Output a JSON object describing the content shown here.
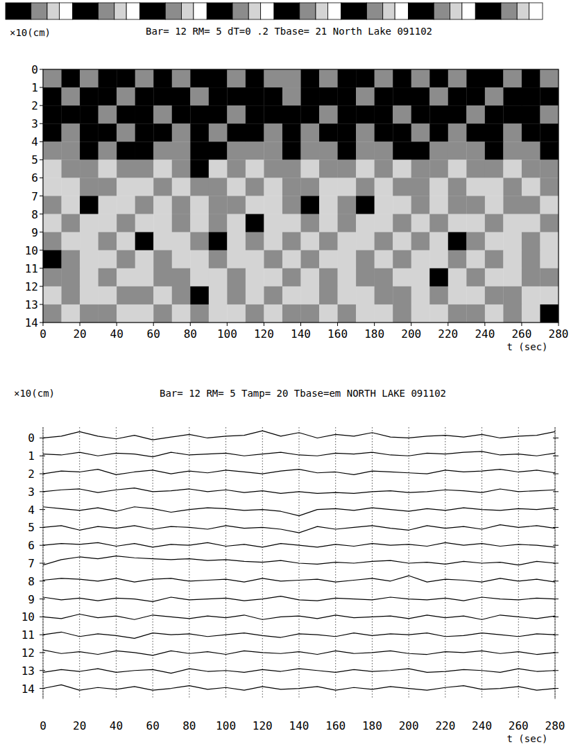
{
  "chart_data": [
    {
      "type": "heatmap",
      "title": "Bar= 12  RM= 5  dT=0 .2  Tbase= 21  North Lake 091102",
      "y_label": "×10(cm)",
      "x_label": "t (sec)",
      "xlim": [
        0,
        280
      ],
      "xticks": [
        0,
        20,
        40,
        60,
        80,
        100,
        120,
        140,
        160,
        180,
        200,
        220,
        240,
        260,
        280
      ],
      "ylim": [
        0,
        14
      ],
      "yticks": [
        0,
        1,
        2,
        3,
        4,
        5,
        6,
        7,
        8,
        9,
        10,
        11,
        12,
        13,
        14
      ],
      "levels": [
        0,
        1,
        2,
        3
      ],
      "colors": [
        "#ffffff",
        "#d4d4d4",
        "#8c8c8c",
        "#000000"
      ],
      "cells": [
        [
          2,
          3,
          2,
          3,
          3,
          2,
          3,
          2,
          3,
          3,
          2,
          3,
          2,
          2,
          3,
          2,
          3,
          3,
          2,
          3,
          2,
          3,
          2,
          3,
          3,
          2,
          3,
          2
        ],
        [
          3,
          2,
          3,
          3,
          2,
          3,
          3,
          3,
          2,
          3,
          3,
          3,
          3,
          2,
          3,
          3,
          3,
          2,
          3,
          3,
          3,
          2,
          3,
          3,
          2,
          3,
          3,
          3
        ],
        [
          3,
          3,
          3,
          2,
          3,
          3,
          2,
          3,
          3,
          3,
          2,
          3,
          3,
          3,
          3,
          2,
          3,
          3,
          3,
          2,
          3,
          3,
          3,
          2,
          3,
          3,
          3,
          2
        ],
        [
          3,
          2,
          3,
          3,
          2,
          3,
          3,
          2,
          3,
          2,
          3,
          3,
          2,
          3,
          2,
          3,
          3,
          2,
          3,
          3,
          2,
          3,
          2,
          3,
          3,
          2,
          3,
          3
        ],
        [
          2,
          2,
          3,
          2,
          3,
          3,
          2,
          2,
          3,
          3,
          2,
          2,
          2,
          3,
          2,
          2,
          3,
          2,
          2,
          3,
          3,
          2,
          2,
          2,
          3,
          2,
          2,
          3
        ],
        [
          1,
          2,
          2,
          1,
          2,
          2,
          1,
          2,
          3,
          1,
          2,
          1,
          2,
          2,
          1,
          2,
          2,
          1,
          2,
          1,
          2,
          2,
          1,
          2,
          2,
          1,
          2,
          2
        ],
        [
          1,
          1,
          2,
          2,
          1,
          1,
          2,
          1,
          2,
          2,
          1,
          2,
          1,
          2,
          2,
          1,
          1,
          2,
          1,
          2,
          2,
          1,
          2,
          1,
          1,
          2,
          1,
          2
        ],
        [
          2,
          1,
          3,
          1,
          1,
          2,
          1,
          2,
          1,
          2,
          2,
          1,
          1,
          2,
          3,
          1,
          2,
          3,
          1,
          1,
          2,
          1,
          2,
          2,
          1,
          2,
          2,
          1
        ],
        [
          1,
          2,
          1,
          1,
          2,
          1,
          1,
          2,
          1,
          2,
          1,
          3,
          1,
          1,
          2,
          1,
          2,
          1,
          1,
          2,
          1,
          2,
          1,
          1,
          2,
          1,
          1,
          2
        ],
        [
          2,
          1,
          1,
          2,
          1,
          3,
          1,
          1,
          2,
          3,
          1,
          2,
          1,
          2,
          1,
          2,
          1,
          1,
          2,
          1,
          2,
          1,
          3,
          2,
          1,
          1,
          2,
          1
        ],
        [
          3,
          2,
          1,
          1,
          2,
          1,
          2,
          1,
          1,
          2,
          1,
          1,
          2,
          1,
          2,
          1,
          1,
          2,
          1,
          2,
          1,
          1,
          2,
          1,
          2,
          1,
          2,
          1
        ],
        [
          2,
          2,
          1,
          2,
          1,
          1,
          2,
          2,
          1,
          1,
          2,
          1,
          1,
          2,
          1,
          2,
          1,
          2,
          2,
          1,
          1,
          3,
          1,
          2,
          1,
          1,
          2,
          2
        ],
        [
          1,
          2,
          1,
          1,
          2,
          2,
          1,
          2,
          3,
          1,
          2,
          1,
          2,
          1,
          1,
          2,
          1,
          1,
          2,
          2,
          1,
          2,
          1,
          1,
          2,
          2,
          1,
          1
        ],
        [
          2,
          1,
          2,
          2,
          1,
          1,
          2,
          1,
          2,
          1,
          1,
          2,
          1,
          2,
          2,
          1,
          2,
          1,
          1,
          2,
          1,
          1,
          2,
          2,
          1,
          2,
          1,
          3
        ]
      ]
    },
    {
      "type": "line",
      "title": "Bar= 12  RM= 5 Tamp= 20 Tbase=em NORTH LAKE 091102",
      "y_label": "×10(cm)",
      "x_label": "t (sec)",
      "xlim": [
        0,
        280
      ],
      "xticks": [
        0,
        20,
        40,
        60,
        80,
        100,
        120,
        140,
        160,
        180,
        200,
        220,
        240,
        260,
        280
      ],
      "ylim": [
        -0.6,
        14.6
      ],
      "yticks": [
        0,
        1,
        2,
        3,
        4,
        5,
        6,
        7,
        8,
        9,
        10,
        11,
        12,
        13,
        14
      ],
      "grid": true,
      "color": "#000000",
      "x": [
        0,
        10,
        20,
        30,
        40,
        50,
        60,
        70,
        80,
        90,
        100,
        110,
        120,
        130,
        140,
        150,
        160,
        170,
        180,
        190,
        200,
        210,
        220,
        230,
        240,
        250,
        260,
        270,
        280
      ],
      "series": [
        {
          "values": [
            0.0,
            -0.1,
            -0.35,
            -0.1,
            0.05,
            -0.15,
            0.1,
            -0.05,
            -0.2,
            0.0,
            -0.1,
            -0.15,
            -0.4,
            -0.1,
            -0.3,
            0.0,
            -0.2,
            -0.1,
            -0.3,
            -0.05,
            0.0,
            -0.1,
            -0.15,
            -0.05,
            -0.2,
            0.0,
            -0.1,
            -0.15,
            -0.35
          ]
        },
        {
          "values": [
            0.9,
            0.95,
            0.8,
            1.0,
            0.85,
            0.9,
            1.05,
            0.8,
            0.95,
            0.9,
            0.85,
            1.0,
            0.9,
            0.8,
            0.95,
            1.0,
            0.85,
            0.9,
            0.8,
            0.95,
            1.0,
            0.85,
            0.9,
            0.8,
            0.75,
            0.95,
            0.9,
            1.0,
            0.85
          ]
        },
        {
          "values": [
            2.0,
            1.85,
            1.9,
            1.75,
            2.05,
            1.9,
            1.8,
            2.0,
            1.85,
            1.95,
            1.8,
            1.9,
            2.0,
            1.85,
            1.75,
            1.95,
            1.9,
            2.05,
            1.85,
            1.9,
            1.95,
            2.0,
            1.8,
            1.9,
            1.85,
            1.75,
            1.9,
            1.8,
            1.95
          ]
        },
        {
          "values": [
            3.0,
            2.9,
            2.85,
            3.05,
            2.9,
            2.8,
            3.0,
            2.95,
            2.85,
            3.0,
            2.9,
            3.05,
            2.95,
            3.1,
            3.0,
            3.1,
            3.05,
            3.1,
            3.0,
            2.95,
            3.05,
            3.0,
            2.9,
            2.95,
            3.05,
            2.85,
            3.0,
            2.95,
            2.9
          ]
        },
        {
          "values": [
            3.85,
            3.95,
            4.05,
            3.9,
            4.1,
            3.85,
            3.95,
            4.15,
            4.0,
            3.9,
            3.95,
            4.05,
            4.0,
            4.1,
            4.35,
            4.0,
            3.95,
            4.05,
            3.9,
            4.0,
            4.1,
            3.95,
            4.05,
            3.9,
            4.0,
            4.05,
            3.95,
            4.0,
            3.9
          ]
        },
        {
          "values": [
            5.0,
            4.9,
            5.15,
            4.95,
            5.05,
            4.9,
            5.1,
            4.95,
            5.0,
            5.1,
            4.9,
            5.05,
            5.0,
            5.1,
            5.3,
            4.95,
            5.1,
            5.0,
            4.9,
            5.05,
            5.15,
            4.9,
            5.05,
            4.95,
            5.1,
            4.85,
            5.0,
            4.9,
            5.05
          ]
        },
        {
          "values": [
            6.0,
            5.9,
            5.95,
            5.85,
            6.05,
            5.9,
            6.1,
            5.95,
            6.0,
            5.85,
            6.05,
            5.95,
            6.1,
            5.9,
            6.0,
            6.1,
            5.95,
            6.05,
            5.9,
            6.0,
            5.95,
            6.05,
            5.85,
            6.0,
            5.9,
            6.05,
            5.95,
            6.0,
            6.1
          ]
        },
        {
          "values": [
            7.1,
            6.8,
            6.65,
            6.75,
            6.6,
            6.7,
            6.75,
            6.8,
            6.75,
            6.85,
            6.8,
            6.9,
            6.95,
            6.85,
            7.0,
            7.05,
            6.95,
            7.0,
            6.9,
            6.85,
            7.0,
            6.95,
            7.05,
            6.9,
            7.0,
            6.95,
            7.1,
            6.9,
            7.0
          ]
        },
        {
          "values": [
            7.95,
            7.85,
            7.9,
            8.0,
            7.85,
            8.05,
            7.9,
            7.85,
            8.0,
            7.95,
            7.9,
            8.05,
            7.85,
            8.0,
            7.95,
            7.9,
            8.05,
            7.95,
            7.85,
            8.0,
            7.7,
            8.05,
            7.9,
            7.95,
            8.05,
            7.85,
            8.0,
            7.9,
            8.05
          ]
        },
        {
          "values": [
            8.9,
            9.05,
            8.95,
            9.1,
            8.95,
            9.0,
            9.15,
            8.9,
            9.05,
            9.0,
            8.95,
            9.1,
            9.0,
            8.85,
            9.05,
            9.1,
            8.95,
            9.0,
            9.05,
            8.9,
            9.0,
            9.05,
            8.95,
            9.1,
            8.9,
            9.0,
            9.05,
            8.95,
            9.0
          ]
        },
        {
          "values": [
            10.0,
            10.1,
            9.85,
            10.05,
            9.95,
            10.15,
            9.9,
            10.0,
            10.1,
            9.95,
            10.05,
            9.9,
            10.15,
            10.0,
            9.95,
            10.1,
            9.9,
            10.05,
            10.0,
            9.95,
            10.1,
            9.9,
            10.05,
            9.95,
            10.15,
            9.9,
            10.0,
            10.1,
            9.95
          ]
        },
        {
          "values": [
            11.0,
            10.85,
            11.1,
            10.95,
            11.05,
            11.2,
            10.9,
            11.0,
            10.95,
            11.1,
            11.0,
            10.9,
            11.05,
            11.15,
            10.95,
            11.0,
            11.1,
            10.9,
            11.05,
            10.95,
            11.0,
            10.9,
            11.1,
            11.05,
            10.9,
            11.0,
            11.1,
            10.95,
            11.0
          ]
        },
        {
          "values": [
            11.85,
            12.05,
            11.95,
            12.1,
            11.9,
            12.0,
            12.15,
            11.9,
            12.05,
            11.95,
            12.1,
            11.9,
            12.0,
            12.05,
            11.95,
            12.1,
            11.9,
            12.05,
            12.0,
            11.9,
            12.05,
            12.1,
            11.95,
            12.0,
            11.9,
            12.05,
            11.95,
            12.1,
            12.0
          ]
        },
        {
          "values": [
            13.1,
            12.95,
            13.05,
            12.9,
            13.1,
            13.0,
            12.95,
            13.15,
            12.9,
            13.05,
            13.0,
            13.1,
            12.95,
            13.05,
            12.9,
            13.0,
            13.1,
            12.95,
            13.05,
            13.0,
            12.9,
            13.1,
            13.05,
            12.95,
            13.0,
            13.1,
            12.9,
            13.05,
            13.0
          ]
        },
        {
          "values": [
            14.0,
            13.8,
            14.1,
            13.95,
            14.05,
            13.9,
            14.1,
            14.0,
            13.85,
            14.05,
            13.95,
            14.1,
            13.9,
            14.05,
            14.0,
            13.9,
            14.1,
            13.95,
            14.05,
            13.9,
            14.0,
            14.1,
            13.95,
            13.85,
            14.05,
            14.0,
            13.9,
            14.1,
            14.0
          ]
        }
      ]
    }
  ]
}
